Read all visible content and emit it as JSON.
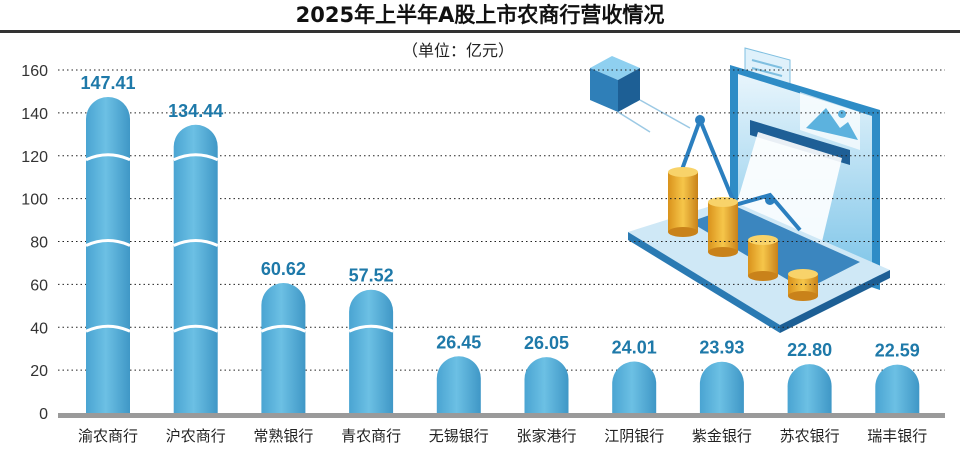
{
  "title": "2025年上半年A股上市农商行营收情况",
  "unit": "（单位：亿元）",
  "chart_data": {
    "type": "bar",
    "categories": [
      "渝农商行",
      "沪农商行",
      "常熟银行",
      "青农商行",
      "无锡银行",
      "张家港行",
      "江阴银行",
      "紫金银行",
      "苏农银行",
      "瑞丰银行"
    ],
    "values": [
      147.41,
      134.44,
      60.62,
      57.52,
      26.45,
      26.05,
      24.01,
      23.93,
      22.8,
      22.59
    ],
    "value_labels": [
      "147.41",
      "134.44",
      "60.62",
      "57.52",
      "26.45",
      "26.05",
      "24.01",
      "23.93",
      "22.80",
      "22.59"
    ],
    "y_ticks": [
      "0",
      "20",
      "40",
      "60",
      "80",
      "100",
      "120",
      "140",
      "160"
    ],
    "ylim": [
      0,
      160
    ],
    "grid": true,
    "colors": {
      "bar": "#62b7dd",
      "bar_dark": "#3f97c6",
      "seam": "#ffffff",
      "label": "#1e79a9",
      "grid": "#222222",
      "axis": "#9a9a9a"
    }
  }
}
